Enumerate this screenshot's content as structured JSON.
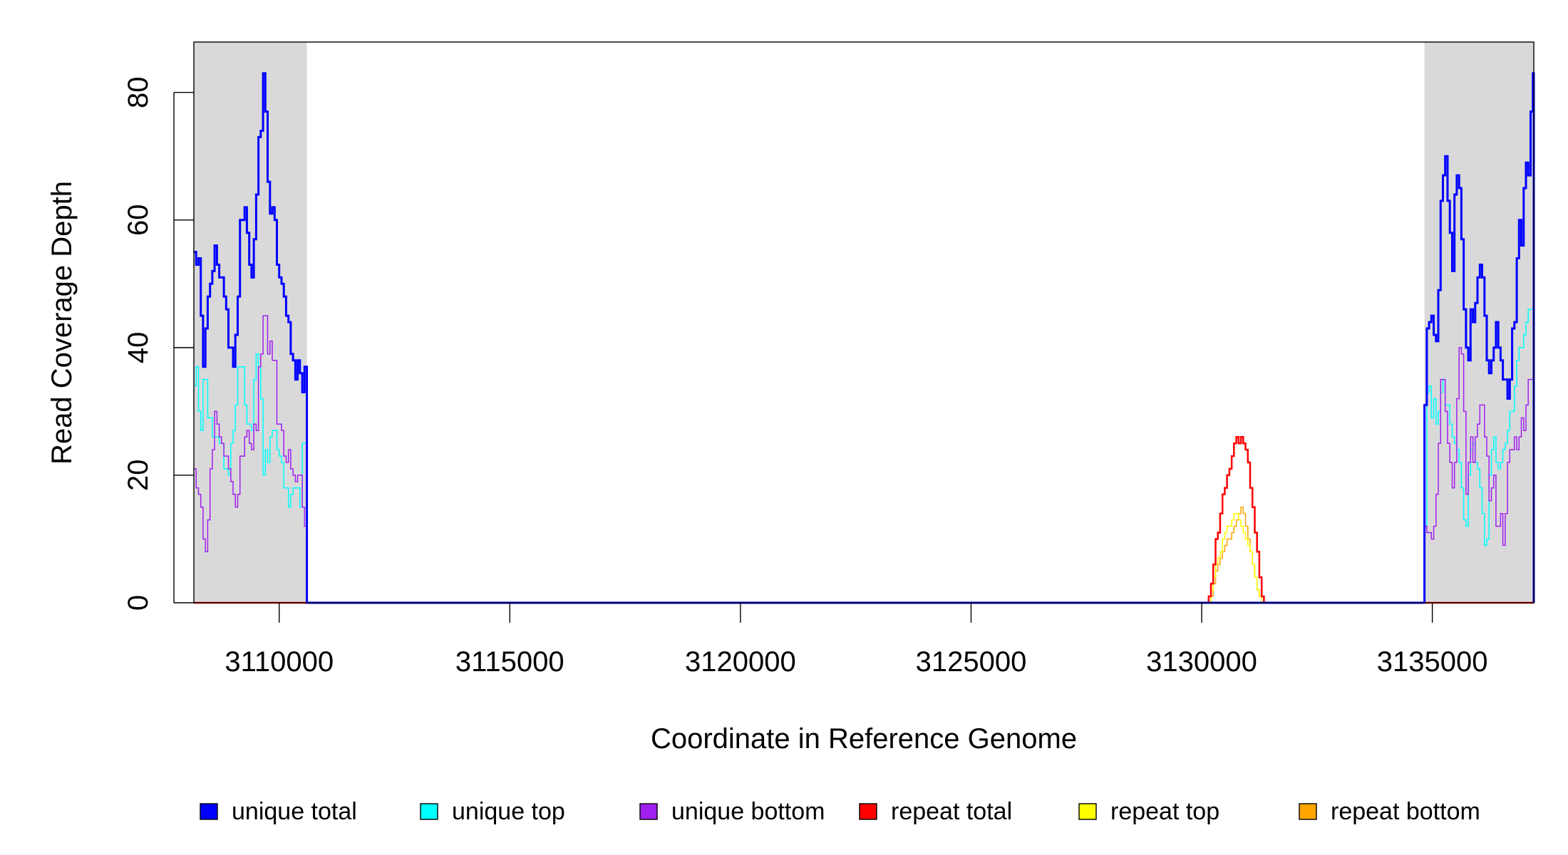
{
  "chart_data": {
    "type": "line",
    "title": "",
    "xlabel": "Coordinate in Reference Genome",
    "ylabel": "Read Coverage Depth",
    "xlim": [
      3108150,
      3137200
    ],
    "ylim": [
      0,
      87.9
    ],
    "xticks": [
      3110000,
      3115000,
      3120000,
      3125000,
      3130000,
      3135000
    ],
    "xtick_labels": [
      "3110000",
      "3115000",
      "3120000",
      "3125000",
      "3130000",
      "3135000"
    ],
    "yticks": [
      0,
      20,
      40,
      60,
      80
    ],
    "ytick_labels": [
      "0",
      "20",
      "40",
      "60",
      "80"
    ],
    "grid": false,
    "legend_position": "bottom",
    "shaded_regions": [
      {
        "start": 3108150,
        "end": 3110600,
        "color": "#d9d9d9"
      },
      {
        "start": 3134830,
        "end": 3137200,
        "color": "#d9d9d9"
      }
    ],
    "series": [
      {
        "name": "repeat bottom",
        "color": "#ffa500",
        "width": 1.5,
        "segments": [
          {
            "start": 3130150,
            "step": 50,
            "values": [
              0,
              1,
              3,
              5,
              6,
              7,
              8,
              9,
              10,
              10,
              11,
              12,
              13,
              14,
              15,
              14,
              12,
              10,
              8,
              6,
              4,
              2,
              1,
              0,
              0
            ]
          }
        ]
      },
      {
        "name": "repeat top",
        "color": "#ffff00",
        "width": 1.5,
        "segments": [
          {
            "start": 3130150,
            "step": 50,
            "values": [
              0,
              2,
              4,
              6,
              7,
              8,
              10,
              11,
              12,
              12,
              13,
              14,
              14,
              13,
              12,
              11,
              10,
              9,
              8,
              6,
              4,
              2,
              1,
              0,
              0
            ]
          }
        ]
      },
      {
        "name": "repeat total",
        "color": "#ff0000",
        "width": 2.5,
        "segments": [
          {
            "start": 3130150,
            "step": 50,
            "values": [
              1,
              3,
              6,
              10,
              11,
              14,
              17,
              18,
              20,
              21,
              23,
              25,
              26,
              25,
              26,
              25,
              24,
              22,
              18,
              15,
              11,
              8,
              4,
              1,
              0
            ]
          }
        ]
      },
      {
        "name": "unique top",
        "color": "#00ffff",
        "width": 1.5,
        "segments": [
          {
            "start": 3108150,
            "step": 50,
            "values": [
              34,
              37,
              30,
              27,
              35,
              35,
              29,
              29,
              26,
              26,
              26,
              25,
              25,
              21,
              21,
              20,
              25,
              27,
              31,
              37,
              37,
              37,
              31,
              28,
              28,
              27,
              35,
              39,
              37,
              32,
              20,
              24,
              22,
              26,
              27,
              27,
              24,
              23,
              22,
              18,
              18,
              15,
              17,
              18,
              18,
              18,
              15,
              25,
              25
            ]
          },
          {
            "start": 3134830,
            "step": 50,
            "values": [
              12,
              33,
              34,
              29,
              32,
              28,
              30,
              33,
              35,
              31,
              31,
              28,
              26,
              25,
              24,
              22,
              18,
              13,
              12,
              20,
              24,
              25,
              22,
              21,
              18,
              14,
              9,
              10,
              20,
              24,
              26,
              22,
              21,
              22,
              24,
              25,
              27,
              30,
              30,
              34,
              38,
              40,
              40,
              42,
              44,
              46,
              46,
              46
            ]
          }
        ]
      },
      {
        "name": "unique bottom",
        "color": "#a020f0",
        "width": 1.5,
        "segments": [
          {
            "start": 3108150,
            "step": 50,
            "values": [
              21,
              18,
              17,
              15,
              10,
              8,
              13,
              21,
              24,
              30,
              28,
              26,
              25,
              23,
              23,
              21,
              19,
              17,
              15,
              17,
              23,
              23,
              26,
              27,
              25,
              24,
              28,
              27,
              37,
              39,
              45,
              45,
              39,
              41,
              38,
              38,
              28,
              28,
              27,
              23,
              22,
              24,
              21,
              20,
              19,
              20,
              20,
              15,
              12
            ]
          },
          {
            "start": 3134830,
            "step": 50,
            "values": [
              12,
              11,
              11,
              10,
              12,
              17,
              25,
              35,
              35,
              30,
              25,
              22,
              18,
              22,
              32,
              40,
              39,
              30,
              17,
              22,
              26,
              22,
              26,
              28,
              31,
              31,
              26,
              23,
              16,
              18,
              20,
              12,
              12,
              14,
              9,
              14,
              22,
              24,
              24,
              26,
              24,
              26,
              29,
              27,
              31,
              35,
              35,
              35
            ]
          }
        ]
      },
      {
        "name": "unique total",
        "color": "#0000ff",
        "width": 3,
        "segments": [
          {
            "start": 3108150,
            "step": 50,
            "values": [
              55,
              53,
              54,
              45,
              37,
              43,
              48,
              50,
              52,
              56,
              53,
              51,
              51,
              48,
              46,
              40,
              40,
              37,
              42,
              48,
              60,
              60,
              62,
              58,
              53,
              51,
              57,
              64,
              73,
              74,
              83,
              77,
              66,
              61,
              62,
              60,
              53,
              51,
              50,
              48,
              45,
              44,
              39,
              38,
              35,
              38,
              36,
              33,
              37
            ]
          },
          {
            "start": 3134830,
            "step": 50,
            "values": [
              31,
              43,
              44,
              45,
              42,
              41,
              49,
              63,
              67,
              70,
              63,
              58,
              52,
              64,
              67,
              65,
              57,
              46,
              40,
              38,
              46,
              44,
              47,
              51,
              53,
              51,
              45,
              38,
              36,
              38,
              40,
              44,
              40,
              38,
              35,
              35,
              32,
              35,
              43,
              44,
              54,
              60,
              56,
              65,
              69,
              67,
              77,
              83
            ]
          }
        ]
      }
    ],
    "legend": [
      {
        "label": "unique total",
        "color": "#0000ff"
      },
      {
        "label": "unique top",
        "color": "#00ffff"
      },
      {
        "label": "unique bottom",
        "color": "#a020f0"
      },
      {
        "label": "repeat total",
        "color": "#ff0000"
      },
      {
        "label": "repeat top",
        "color": "#ffff00"
      },
      {
        "label": "repeat bottom",
        "color": "#ffa500"
      }
    ]
  }
}
